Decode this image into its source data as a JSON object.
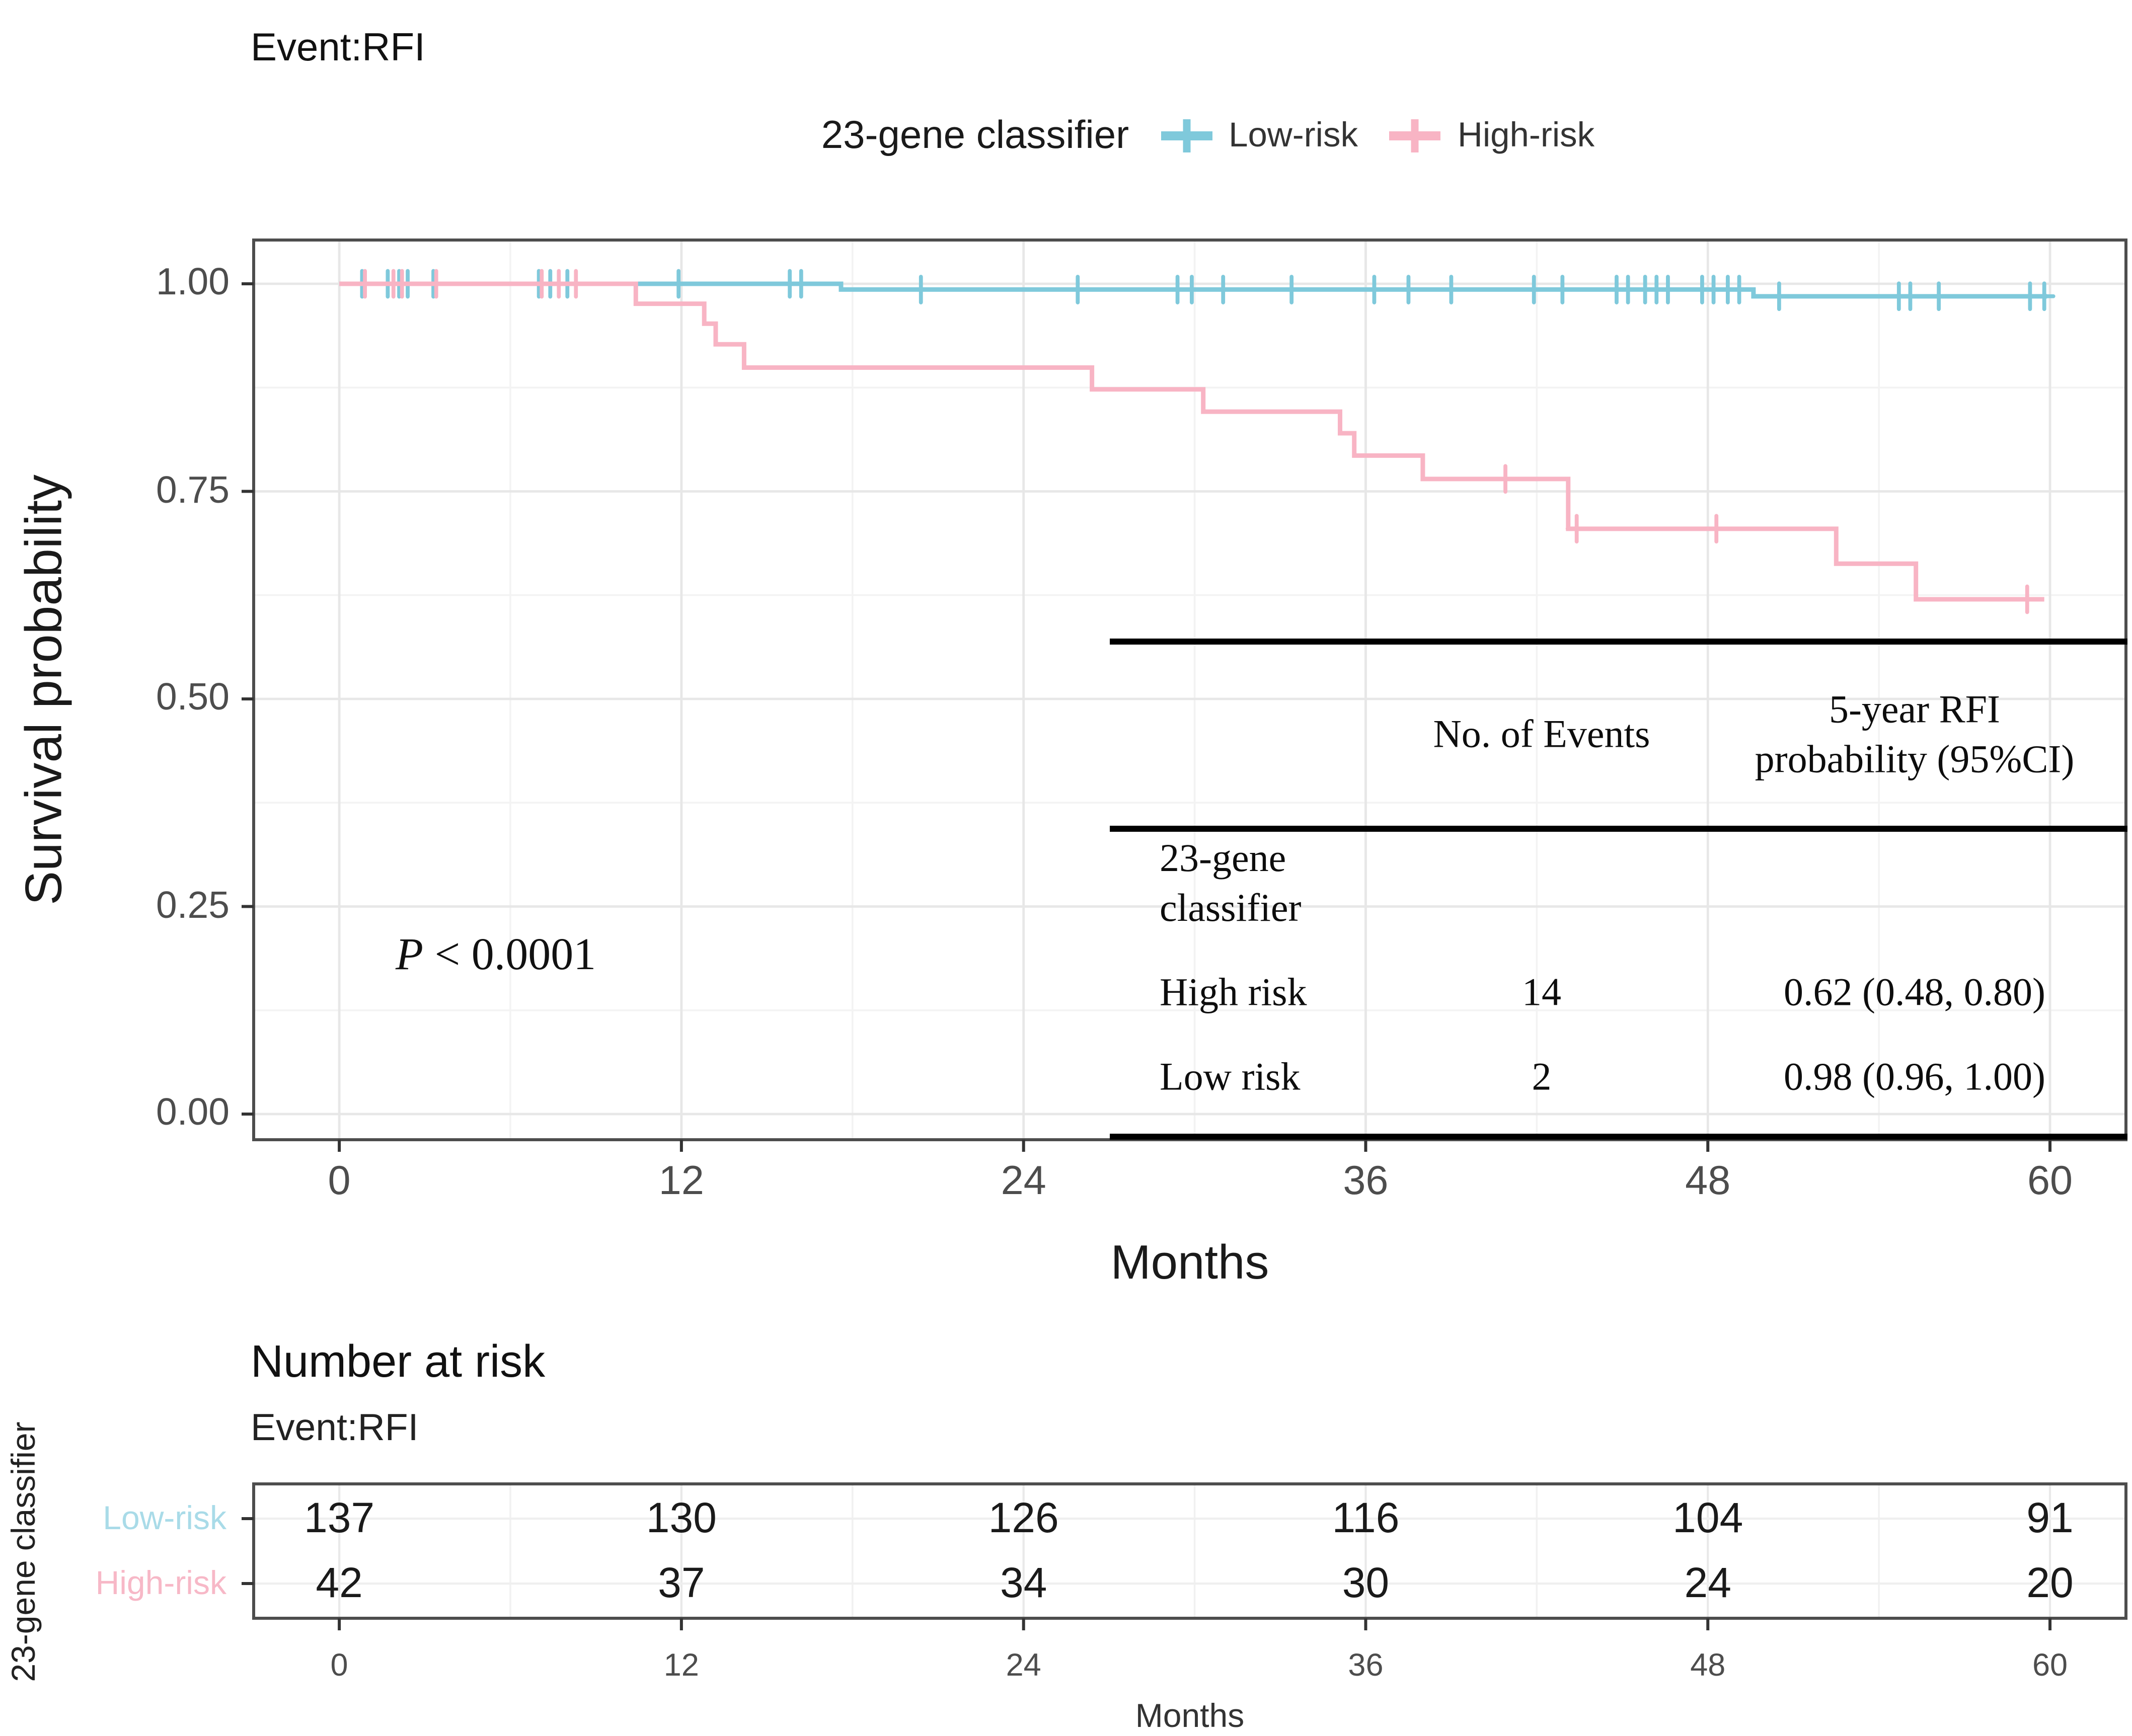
{
  "page": {
    "title": "Event:RFI"
  },
  "legend": {
    "title": "23-gene classifier",
    "items": [
      {
        "label": "Low-risk",
        "color": "#7FC9DB"
      },
      {
        "label": "High-risk",
        "color": "#F8B4C4"
      }
    ]
  },
  "plot": {
    "ylabel": "Survival probability",
    "xlabel": "Months",
    "pvalue_symbol": "P",
    "pvalue_rest": " < 0.0001",
    "ytick_labels": [
      "1.00",
      "0.75",
      "0.50",
      "0.25",
      "0.00"
    ],
    "xtick_labels": [
      "0",
      "12",
      "24",
      "36",
      "48",
      "60"
    ]
  },
  "chart_data": {
    "type": "line",
    "subtype": "kaplan-meier-step",
    "title": "Event:RFI",
    "xlabel": "Months",
    "ylabel": "Survival probability",
    "xlim": [
      0,
      60
    ],
    "ylim": [
      0,
      1
    ],
    "xticks": [
      0,
      12,
      24,
      36,
      48,
      60
    ],
    "xticks_minor": [
      6,
      18,
      30,
      42,
      54
    ],
    "yticks": [
      0,
      0.25,
      0.5,
      0.75,
      1.0
    ],
    "yticks_minor": [
      0.125,
      0.375,
      0.625,
      0.875
    ],
    "grid": true,
    "legend_position": "top",
    "annotation": "P < 0.0001",
    "series": [
      {
        "name": "Low-risk",
        "color": "#7FC9DB",
        "steps": [
          [
            0,
            1.0
          ],
          [
            17.6,
            1.0
          ],
          [
            17.6,
            0.993
          ],
          [
            49.6,
            0.993
          ],
          [
            49.6,
            0.985
          ],
          [
            59.9,
            0.985
          ]
        ],
        "censor_marks": [
          [
            0.8,
            1.0
          ],
          [
            1.7,
            1.0
          ],
          [
            2.1,
            1.0
          ],
          [
            2.4,
            1.0
          ],
          [
            3.3,
            1.0
          ],
          [
            7.0,
            1.0
          ],
          [
            7.4,
            1.0
          ],
          [
            8.0,
            1.0
          ],
          [
            11.9,
            1.0
          ],
          [
            15.8,
            1.0
          ],
          [
            16.2,
            1.0
          ],
          [
            20.4,
            0.993
          ],
          [
            25.9,
            0.993
          ],
          [
            29.4,
            0.993
          ],
          [
            29.9,
            0.993
          ],
          [
            31.0,
            0.993
          ],
          [
            33.4,
            0.993
          ],
          [
            36.3,
            0.993
          ],
          [
            37.5,
            0.993
          ],
          [
            39.0,
            0.993
          ],
          [
            41.9,
            0.993
          ],
          [
            42.9,
            0.993
          ],
          [
            44.8,
            0.993
          ],
          [
            45.2,
            0.993
          ],
          [
            45.8,
            0.993
          ],
          [
            46.2,
            0.993
          ],
          [
            46.6,
            0.993
          ],
          [
            47.8,
            0.993
          ],
          [
            48.2,
            0.993
          ],
          [
            48.7,
            0.993
          ],
          [
            49.1,
            0.993
          ],
          [
            50.5,
            0.985
          ],
          [
            54.7,
            0.985
          ],
          [
            55.1,
            0.985
          ],
          [
            56.1,
            0.985
          ],
          [
            59.3,
            0.985
          ],
          [
            59.8,
            0.985
          ]
        ]
      },
      {
        "name": "High-risk",
        "color": "#F8B4C4",
        "steps": [
          [
            0,
            1.0
          ],
          [
            10.4,
            1.0
          ],
          [
            10.4,
            0.976
          ],
          [
            12.8,
            0.976
          ],
          [
            12.8,
            0.952
          ],
          [
            13.2,
            0.952
          ],
          [
            13.2,
            0.927
          ],
          [
            14.2,
            0.927
          ],
          [
            14.2,
            0.899
          ],
          [
            26.4,
            0.899
          ],
          [
            26.4,
            0.873
          ],
          [
            30.3,
            0.873
          ],
          [
            30.3,
            0.846
          ],
          [
            35.1,
            0.846
          ],
          [
            35.1,
            0.82
          ],
          [
            35.6,
            0.82
          ],
          [
            35.6,
            0.793
          ],
          [
            38.0,
            0.793
          ],
          [
            38.0,
            0.765
          ],
          [
            43.1,
            0.765
          ],
          [
            43.1,
            0.705
          ],
          [
            52.5,
            0.705
          ],
          [
            52.5,
            0.663
          ],
          [
            55.3,
            0.663
          ],
          [
            55.3,
            0.62
          ],
          [
            59.8,
            0.62
          ]
        ],
        "censor_marks": [
          [
            0.9,
            1.0
          ],
          [
            1.9,
            1.0
          ],
          [
            2.2,
            1.0
          ],
          [
            3.4,
            1.0
          ],
          [
            7.1,
            1.0
          ],
          [
            7.7,
            1.0
          ],
          [
            8.3,
            1.0
          ],
          [
            40.9,
            0.765
          ],
          [
            43.4,
            0.705
          ],
          [
            48.3,
            0.705
          ],
          [
            59.2,
            0.62
          ]
        ]
      }
    ]
  },
  "annotation_table": {
    "col2_header": "No. of Events",
    "col3_header_lines": [
      "5-year RFI",
      "probability (95%CI)"
    ],
    "group_label_lines": [
      "23-gene",
      "classifier"
    ],
    "rows": [
      {
        "label": "High risk",
        "events": "14",
        "estimate": "0.62 (0.48, 0.80)"
      },
      {
        "label": "Low risk",
        "events": "2",
        "estimate": "0.98 (0.96, 1.00)"
      }
    ]
  },
  "risk_table": {
    "title": "Number at risk",
    "subtitle": "Event:RFI",
    "ylabel": "23-gene classifier",
    "xlabel": "Months",
    "timepoints": [
      0,
      12,
      24,
      36,
      48,
      60
    ],
    "xtick_labels": [
      "0",
      "12",
      "24",
      "36",
      "48",
      "60"
    ],
    "rows": [
      {
        "label": "Low-risk",
        "color": "#A9DBE8",
        "counts": [
          "137",
          "130",
          "126",
          "116",
          "104",
          "91"
        ]
      },
      {
        "label": "High-risk",
        "color": "#F7B8C7",
        "counts": [
          "42",
          "37",
          "34",
          "30",
          "24",
          "20"
        ]
      }
    ]
  }
}
